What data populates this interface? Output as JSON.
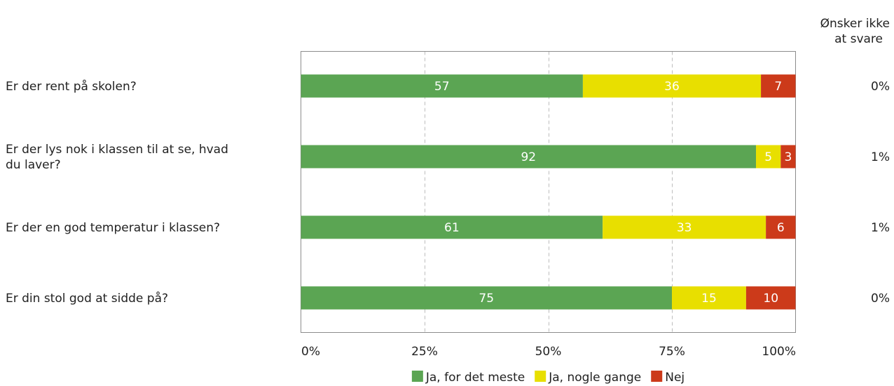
{
  "chart_data": {
    "type": "bar",
    "orientation": "horizontal",
    "stacked": true,
    "categories": [
      "Er der rent på skolen?",
      "Er der lys nok i klassen til at se, hvad du laver?",
      "Er der en god temperatur i klassen?",
      "Er din stol god at sidde på?"
    ],
    "category_lines": [
      [
        "Er der rent på skolen?"
      ],
      [
        "Er der lys nok i klassen til at se, hvad",
        "du laver?"
      ],
      [
        "Er der en god temperatur i klassen?"
      ],
      [
        "Er din stol god at sidde på?"
      ]
    ],
    "series": [
      {
        "name": "Ja, for det meste",
        "color": "#5ba553",
        "label_color": "#ffffff",
        "values": [
          57,
          92,
          61,
          75
        ]
      },
      {
        "name": "Ja, nogle gange",
        "color": "#e8df00",
        "label_color": "#ffffff",
        "values": [
          36,
          5,
          33,
          15
        ]
      },
      {
        "name": "Nej",
        "color": "#cc3a1a",
        "label_color": "#ffffff",
        "values": [
          7,
          3,
          6,
          10
        ]
      }
    ],
    "side_column": {
      "title_lines": [
        "Ønsker ikke",
        "at svare"
      ],
      "values": [
        "0%",
        "1%",
        "1%",
        "0%"
      ]
    },
    "xlim": [
      0,
      100
    ],
    "x_ticks": [
      0,
      25,
      50,
      75,
      100
    ],
    "x_tick_labels": [
      "0%",
      "25%",
      "50%",
      "75%",
      "100%"
    ],
    "grid": "vertical-dashed",
    "legend_position": "bottom"
  }
}
